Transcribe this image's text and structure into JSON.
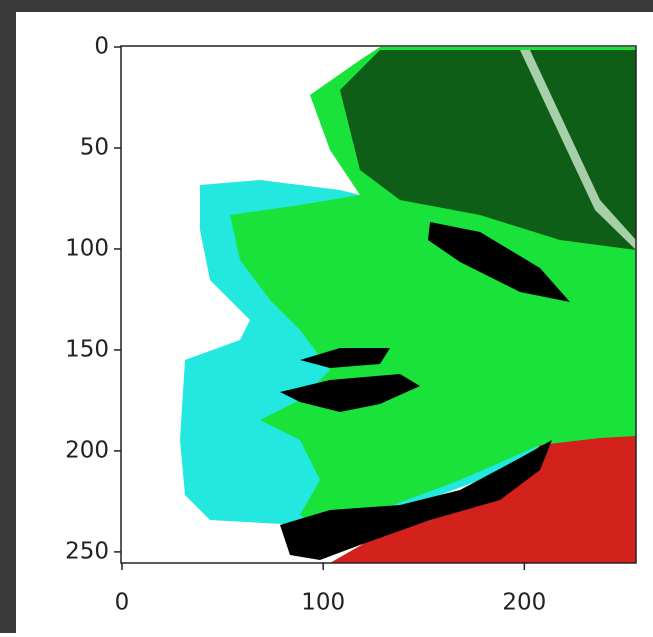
{
  "chart_data": {
    "type": "image",
    "xlim": [
      -0.5,
      255.5
    ],
    "ylim": [
      255.5,
      -0.5
    ],
    "xticks": [
      0,
      100,
      200
    ],
    "yticks": [
      0,
      50,
      100,
      150,
      200,
      250
    ]
  }
}
